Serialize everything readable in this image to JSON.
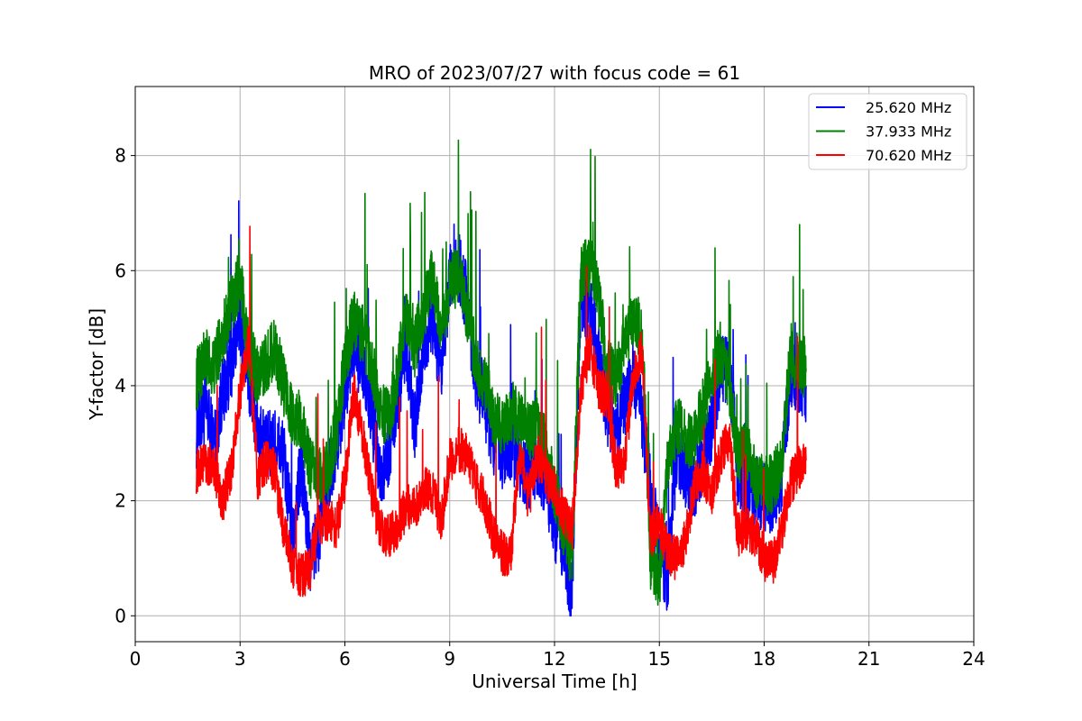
{
  "chart_data": {
    "type": "line",
    "title": "MRO of 2023/07/27 with focus code = 61",
    "xlabel": "Universal Time [h]",
    "ylabel": "Y-factor [dB]",
    "xlim": [
      0,
      24
    ],
    "ylim": [
      -0.45,
      9.2
    ],
    "xticks": [
      0,
      3,
      6,
      9,
      12,
      15,
      18,
      21,
      24
    ],
    "yticks": [
      0,
      2,
      4,
      6,
      8
    ],
    "grid": true,
    "legend_position": "top-right",
    "series": [
      {
        "name": "25.620 MHz",
        "color": "#0000ff",
        "x": [
          1.75,
          2.0,
          2.25,
          2.5,
          2.75,
          3.0,
          3.25,
          3.5,
          3.75,
          4.0,
          4.25,
          4.5,
          4.75,
          5.0,
          5.25,
          5.5,
          5.75,
          6.0,
          6.25,
          6.5,
          6.75,
          7.0,
          7.25,
          7.5,
          7.75,
          8.0,
          8.25,
          8.5,
          8.75,
          9.0,
          9.25,
          9.5,
          9.75,
          10.0,
          10.25,
          10.5,
          10.75,
          11.0,
          11.25,
          11.5,
          11.75,
          12.0,
          12.25,
          12.5,
          12.75,
          13.0,
          13.25,
          13.5,
          13.75,
          14.0,
          14.25,
          14.5,
          14.75,
          15.0,
          15.25,
          15.5,
          15.75,
          16.0,
          16.25,
          16.5,
          16.75,
          17.0,
          17.25,
          17.5,
          17.75,
          18.0,
          18.25,
          18.5,
          18.75,
          19.0,
          19.2
        ],
        "y": [
          3.2,
          3.6,
          3.0,
          3.9,
          4.4,
          5.2,
          4.2,
          3.3,
          2.9,
          3.0,
          2.8,
          1.3,
          2.6,
          1.0,
          1.4,
          2.4,
          3.0,
          3.9,
          4.8,
          4.3,
          3.6,
          2.4,
          2.9,
          3.8,
          4.8,
          3.3,
          4.6,
          5.2,
          4.1,
          5.9,
          6.1,
          5.5,
          4.2,
          3.7,
          3.1,
          2.8,
          3.0,
          2.7,
          2.4,
          2.7,
          2.4,
          1.6,
          1.2,
          0.4,
          5.6,
          5.3,
          4.6,
          3.6,
          3.2,
          3.7,
          4.1,
          3.5,
          2.1,
          1.2,
          0.6,
          2.9,
          2.5,
          2.3,
          2.7,
          3.3,
          4.3,
          4.4,
          2.5,
          2.1,
          2.2,
          2.1,
          2.0,
          2.4,
          4.3,
          4.1,
          4.0
        ],
        "noise": 0.65
      },
      {
        "name": "37.933 MHz",
        "color": "#008000",
        "x": [
          1.75,
          2.0,
          2.25,
          2.5,
          2.75,
          3.0,
          3.25,
          3.5,
          3.75,
          4.0,
          4.25,
          4.5,
          4.75,
          5.0,
          5.25,
          5.5,
          5.75,
          6.0,
          6.25,
          6.5,
          6.75,
          7.0,
          7.25,
          7.5,
          7.75,
          8.0,
          8.25,
          8.5,
          8.75,
          9.0,
          9.25,
          9.5,
          9.75,
          10.0,
          10.25,
          10.5,
          10.75,
          11.0,
          11.25,
          11.5,
          11.75,
          12.0,
          12.25,
          12.5,
          12.75,
          13.0,
          13.25,
          13.5,
          13.75,
          14.0,
          14.25,
          14.5,
          14.75,
          15.0,
          15.25,
          15.5,
          15.75,
          16.0,
          16.25,
          16.5,
          16.75,
          17.0,
          17.25,
          17.5,
          17.75,
          18.0,
          18.25,
          18.5,
          18.75,
          19.0,
          19.2
        ],
        "y": [
          4.1,
          4.5,
          4.3,
          4.9,
          5.4,
          5.9,
          4.6,
          4.2,
          4.4,
          4.7,
          4.0,
          3.5,
          3.4,
          2.6,
          2.4,
          2.5,
          3.2,
          4.4,
          5.2,
          4.9,
          4.5,
          3.6,
          3.4,
          4.2,
          5.3,
          4.7,
          5.3,
          5.9,
          4.9,
          5.7,
          6.0,
          5.2,
          4.4,
          4.0,
          3.5,
          3.3,
          3.6,
          3.4,
          3.2,
          3.3,
          2.9,
          2.2,
          1.5,
          1.0,
          5.9,
          6.1,
          5.6,
          4.4,
          4.1,
          4.7,
          5.1,
          5.0,
          1.0,
          0.6,
          2.7,
          3.3,
          3.1,
          3.1,
          3.6,
          4.2,
          4.6,
          4.0,
          2.8,
          2.9,
          2.4,
          2.3,
          2.3,
          2.7,
          4.6,
          4.4,
          4.3
        ],
        "noise": 0.55
      },
      {
        "name": "70.620 MHz",
        "color": "#ff0000",
        "x": [
          1.75,
          2.0,
          2.25,
          2.5,
          2.75,
          3.0,
          3.25,
          3.5,
          3.75,
          4.0,
          4.25,
          4.5,
          4.75,
          5.0,
          5.25,
          5.5,
          5.75,
          6.0,
          6.25,
          6.5,
          6.75,
          7.0,
          7.25,
          7.5,
          7.75,
          8.0,
          8.25,
          8.5,
          8.75,
          9.0,
          9.25,
          9.5,
          9.75,
          10.0,
          10.25,
          10.5,
          10.75,
          11.0,
          11.25,
          11.5,
          11.75,
          12.0,
          12.25,
          12.5,
          12.75,
          13.0,
          13.25,
          13.5,
          13.75,
          14.0,
          14.25,
          14.5,
          14.75,
          15.0,
          15.25,
          15.5,
          15.75,
          16.0,
          16.25,
          16.5,
          16.75,
          17.0,
          17.25,
          17.5,
          17.75,
          18.0,
          18.25,
          18.5,
          18.75,
          19.0,
          19.2
        ],
        "y": [
          2.5,
          2.7,
          2.6,
          2.0,
          2.5,
          3.9,
          4.8,
          2.4,
          2.7,
          2.5,
          1.5,
          0.9,
          0.7,
          0.8,
          1.6,
          1.7,
          1.5,
          2.4,
          3.9,
          3.2,
          2.2,
          1.5,
          1.4,
          1.5,
          1.9,
          1.9,
          2.2,
          2.2,
          1.6,
          2.7,
          2.9,
          2.8,
          2.3,
          2.0,
          1.4,
          1.1,
          1.0,
          2.9,
          2.0,
          2.8,
          2.4,
          2.2,
          1.8,
          1.5,
          3.9,
          4.7,
          4.0,
          3.8,
          2.6,
          2.6,
          4.2,
          4.6,
          1.4,
          1.6,
          1.1,
          1.0,
          1.3,
          2.3,
          2.5,
          2.1,
          2.8,
          3.1,
          1.4,
          1.5,
          1.4,
          1.0,
          0.9,
          1.5,
          2.3,
          2.6,
          2.7
        ],
        "noise": 0.4
      }
    ]
  }
}
